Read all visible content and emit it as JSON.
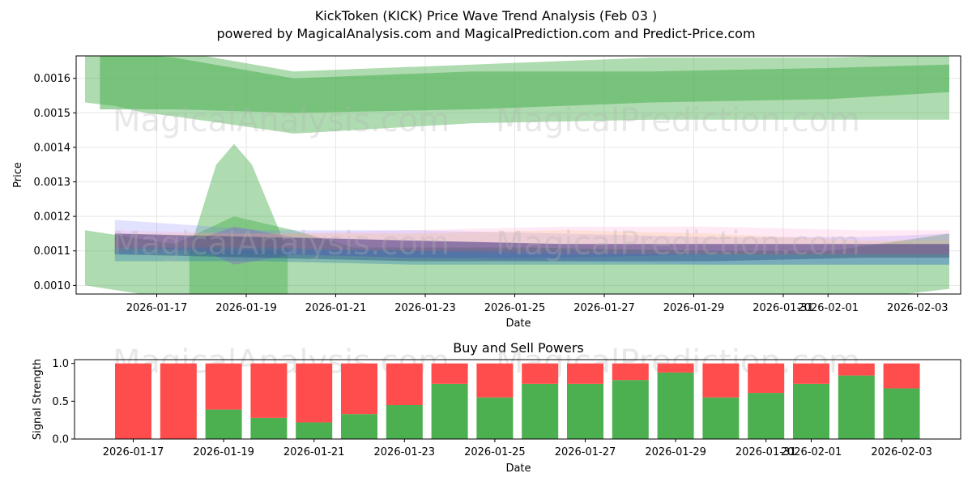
{
  "chart_data": [
    {
      "type": "area",
      "title": "KickToken (KICK) Price Wave Trend Analysis (Feb 03 )",
      "subtitle": "powered by MagicalAnalysis.com and MagicalPrediction.com and Predict-Price.com",
      "xlabel": "Date",
      "ylabel": "Price",
      "x_ticks": [
        "2026-01-17",
        "2026-01-19",
        "2026-01-21",
        "2026-01-23",
        "2026-01-25",
        "2026-01-27",
        "2026-01-29",
        "2026-01-31",
        "2026-02-01",
        "2026-02-03"
      ],
      "y_ticks": [
        "0.0010",
        "0.0011",
        "0.0012",
        "0.0013",
        "0.0014",
        "0.0015",
        "0.0016"
      ],
      "xlim": [
        -1.5,
        30.2
      ],
      "ylim": [
        0.000975,
        0.001665
      ],
      "watermarks": [
        "MagicalAnalysis.com",
        "MagicalPrediction.com"
      ],
      "bands": [
        {
          "name": "upper-outer",
          "color": "#4caf50",
          "opacity": 0.45,
          "x": [
            -1,
            0,
            1,
            2,
            6,
            12,
            18,
            24,
            28
          ],
          "upper": [
            0.00168,
            0.00172,
            0.00172,
            0.00168,
            0.00162,
            0.00164,
            0.00166,
            0.00166,
            0.00167
          ],
          "lower": [
            0.00153,
            0.00152,
            0.0015,
            0.00149,
            0.00144,
            0.00147,
            0.00148,
            0.00148,
            0.00148
          ]
        },
        {
          "name": "upper-inner",
          "color": "#4caf50",
          "opacity": 0.55,
          "x": [
            -0.5,
            2,
            6,
            12,
            18,
            24,
            28
          ],
          "upper": [
            0.00168,
            0.00166,
            0.0016,
            0.00162,
            0.00162,
            0.00163,
            0.00164
          ],
          "lower": [
            0.00151,
            0.00151,
            0.0015,
            0.00151,
            0.00153,
            0.00154,
            0.00156
          ]
        },
        {
          "name": "lower-outer",
          "color": "#4caf50",
          "opacity": 0.45,
          "x": [
            -1,
            2,
            4,
            6,
            8,
            10,
            14,
            20,
            24,
            28
          ],
          "upper": [
            0.00116,
            0.00112,
            0.0012,
            0.00116,
            0.00111,
            0.00111,
            0.00111,
            0.0011,
            0.0011,
            0.00115
          ],
          "lower": [
            0.001,
            0.00096,
            0.00095,
            0.00094,
            0.00095,
            0.00095,
            0.00095,
            0.00095,
            0.00095,
            0.00099
          ]
        },
        {
          "name": "spike",
          "color": "#4caf50",
          "opacity": 0.45,
          "x": [
            2.5,
            3.4,
            4.0,
            4.6,
            5.8
          ],
          "upper": [
            0.0011,
            0.00135,
            0.00141,
            0.00135,
            0.0011
          ],
          "lower": [
            0.00096,
            0.00096,
            0.00096,
            0.00096,
            0.00096
          ]
        },
        {
          "name": "wave-blue",
          "color": "#7b7bff",
          "opacity": 0.22,
          "x": [
            0,
            5,
            10,
            15,
            20,
            25,
            28
          ],
          "upper": [
            0.00119,
            0.00116,
            0.00116,
            0.00115,
            0.00114,
            0.00114,
            0.00115
          ],
          "lower": [
            0.00109,
            0.00109,
            0.00108,
            0.00107,
            0.00106,
            0.00106,
            0.00106
          ]
        },
        {
          "name": "wave-pink",
          "color": "#ff9ad0",
          "opacity": 0.22,
          "x": [
            0,
            5,
            10,
            15,
            20,
            25,
            28
          ],
          "upper": [
            0.00116,
            0.00115,
            0.00116,
            0.00117,
            0.00117,
            0.00116,
            0.00116
          ],
          "lower": [
            0.0011,
            0.0011,
            0.0011,
            0.00111,
            0.0011,
            0.00109,
            0.00109
          ]
        },
        {
          "name": "wave-purple",
          "color": "#8a2be2",
          "opacity": 0.25,
          "x": [
            0,
            3,
            4,
            6,
            10,
            15,
            20,
            25,
            28
          ],
          "upper": [
            0.00115,
            0.00114,
            0.00117,
            0.00114,
            0.00113,
            0.00112,
            0.00112,
            0.00112,
            0.00112
          ],
          "lower": [
            0.00111,
            0.0011,
            0.00106,
            0.00109,
            0.00108,
            0.00108,
            0.00109,
            0.00109,
            0.00109
          ]
        },
        {
          "name": "wave-orange",
          "color": "#ffb04a",
          "opacity": 0.18,
          "x": [
            0,
            5,
            10,
            15,
            20,
            25,
            28
          ],
          "upper": [
            0.00115,
            0.00115,
            0.00115,
            0.00116,
            0.00115,
            0.00113,
            0.00113
          ],
          "lower": [
            0.0011,
            0.0011,
            0.0011,
            0.0011,
            0.00109,
            0.00108,
            0.00108
          ]
        },
        {
          "name": "wave-navy",
          "color": "#1f2a66",
          "opacity": 0.4,
          "x": [
            0,
            5,
            10,
            15,
            20,
            25,
            28
          ],
          "upper": [
            0.00115,
            0.00114,
            0.00113,
            0.00112,
            0.00112,
            0.00112,
            0.00112
          ],
          "lower": [
            0.00109,
            0.00108,
            0.00107,
            0.00107,
            0.00107,
            0.00108,
            0.00108
          ]
        },
        {
          "name": "wave-teal",
          "color": "#2a7ab0",
          "opacity": 0.35,
          "x": [
            0,
            5,
            10,
            15,
            20,
            25,
            28
          ],
          "upper": [
            0.00111,
            0.00111,
            0.0011,
            0.00109,
            0.00109,
            0.00109,
            0.00109
          ],
          "lower": [
            0.00107,
            0.00107,
            0.00106,
            0.00106,
            0.00106,
            0.00106,
            0.00106
          ]
        }
      ]
    },
    {
      "type": "bar",
      "title": "Buy and Sell Powers",
      "xlabel": "Date",
      "ylabel": "Signal Strength",
      "x_ticks": [
        "2026-01-17",
        "2026-01-19",
        "2026-01-21",
        "2026-01-23",
        "2026-01-25",
        "2026-01-27",
        "2026-01-29",
        "2026-01-31",
        "2026-02-01",
        "2026-02-03"
      ],
      "y_ticks": [
        "0.0",
        "0.5",
        "1.0"
      ],
      "ylim": [
        0,
        1.05
      ],
      "categories": [
        "2026-01-17",
        "2026-01-18",
        "2026-01-19",
        "2026-01-20",
        "2026-01-21",
        "2026-01-22",
        "2026-01-23",
        "2026-01-24",
        "2026-01-25",
        "2026-01-26",
        "2026-01-27",
        "2026-01-28",
        "2026-01-29",
        "2026-01-30",
        "2026-01-31",
        "2026-02-01",
        "2026-02-02",
        "2026-02-03"
      ],
      "series": [
        {
          "name": "Buy",
          "color": "#4caf50",
          "values": [
            0.0,
            0.0,
            0.39,
            0.28,
            0.22,
            0.33,
            0.45,
            0.73,
            0.55,
            0.73,
            0.73,
            0.78,
            0.88,
            0.55,
            0.61,
            0.73,
            0.84,
            0.67
          ]
        },
        {
          "name": "Sell",
          "color": "#ff4d4d",
          "values": [
            1.0,
            1.0,
            0.61,
            0.72,
            0.78,
            0.67,
            0.55,
            0.27,
            0.45,
            0.27,
            0.27,
            0.22,
            0.12,
            0.45,
            0.39,
            0.27,
            0.16,
            0.33
          ]
        }
      ],
      "watermarks": [
        "MagicalAnalysis.com",
        "MagicalPrediction.com"
      ]
    }
  ]
}
